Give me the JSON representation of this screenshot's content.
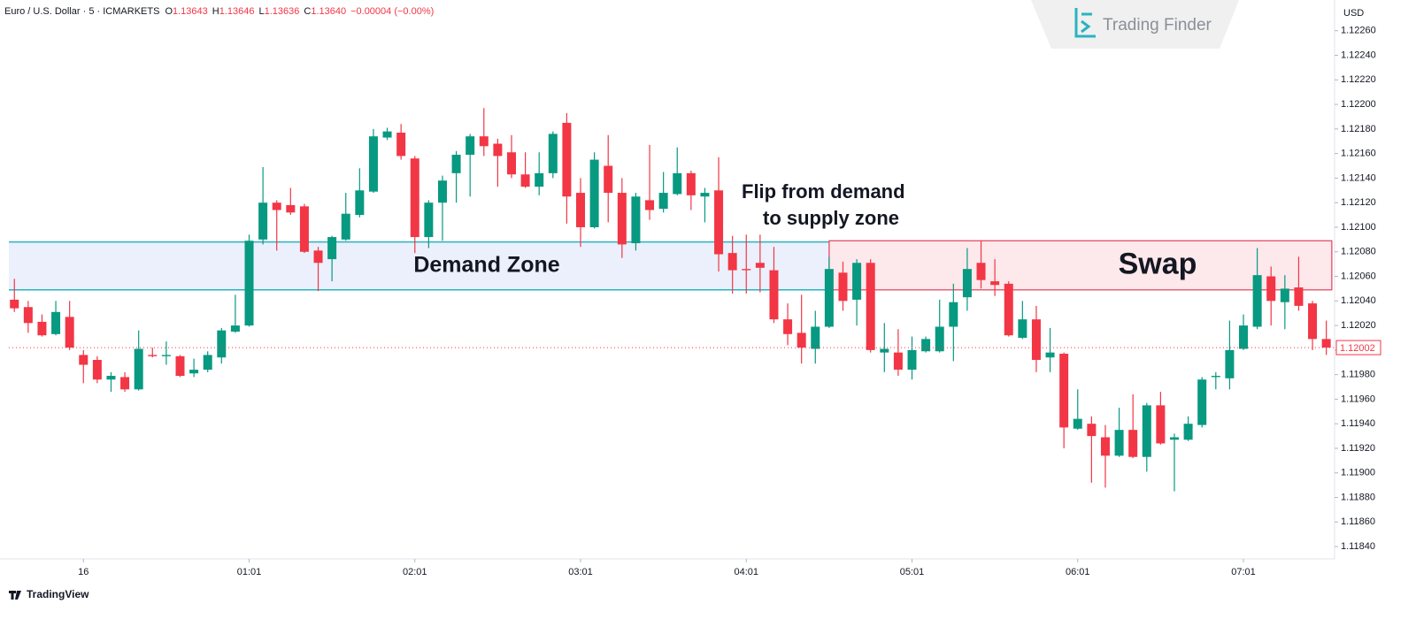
{
  "chart_data": {
    "type": "candlestick",
    "header": {
      "symbol": "Euro / U.S. Dollar · 5 · ICMARKETS",
      "ohlc": [
        {
          "label": "O",
          "value": "1.13643"
        },
        {
          "label": "H",
          "value": "1.13646"
        },
        {
          "label": "L",
          "value": "1.13636"
        },
        {
          "label": "C",
          "value": "1.13640"
        }
      ],
      "change": "−0.00004 (−0.00%)"
    },
    "currency": "USD",
    "watermark": "Trading Finder",
    "footer": "TradingView",
    "up_color": "#089981",
    "down_color": "#f23645",
    "open": [
      1.12041,
      1.12035,
      1.12023,
      1.12013,
      1.12027,
      1.11996,
      1.11992,
      1.11976,
      1.11978,
      1.11968,
      1.11996,
      1.11995,
      1.11995,
      1.11981,
      1.11984,
      1.11994,
      1.12015,
      1.1202,
      1.1209,
      1.1212,
      1.12118,
      1.12117,
      1.12081,
      1.12074,
      1.1209,
      1.1211,
      1.12129,
      1.12173,
      1.12177,
      1.12156,
      1.12092,
      1.1212,
      1.12144,
      1.12159,
      1.12174,
      1.12168,
      1.12161,
      1.12143,
      1.12133,
      1.12144,
      1.12185,
      1.12128,
      1.121,
      1.1215,
      1.12128,
      1.12087,
      1.12122,
      1.12115,
      1.12127,
      1.12144,
      1.12125,
      1.1213,
      1.12079,
      1.12066,
      1.12071,
      1.12065,
      1.12025,
      1.12014,
      1.12001,
      1.12019,
      1.12063,
      1.12041,
      1.12071,
      1.11998,
      1.11998,
      1.11984,
      1.11999,
      1.11999,
      1.12019,
      1.12043,
      1.12071,
      1.12056,
      1.12054,
      1.1201,
      1.12025,
      1.11994,
      1.11997,
      1.11936,
      1.1194,
      1.11929,
      1.11914,
      1.11935,
      1.11913,
      1.11955,
      1.11927,
      1.11927,
      1.11939,
      1.11978,
      1.11977,
      1.12001,
      1.12019,
      1.1206,
      1.12039,
      1.12051,
      1.12038,
      1.12009
    ],
    "high": [
      1.12058,
      1.1204,
      1.12029,
      1.1204,
      1.1204,
      1.12,
      1.11995,
      1.11982,
      1.11982,
      1.12016,
      1.12002,
      1.12007,
      1.11996,
      1.11993,
      1.11999,
      1.12018,
      1.12045,
      1.12094,
      1.12149,
      1.12122,
      1.12132,
      1.12119,
      1.12084,
      1.12093,
      1.12128,
      1.12148,
      1.1218,
      1.12181,
      1.12184,
      1.12158,
      1.12122,
      1.12142,
      1.12162,
      1.12176,
      1.12197,
      1.12172,
      1.12175,
      1.12161,
      1.12161,
      1.12178,
      1.12193,
      1.1214,
      1.12161,
      1.12175,
      1.1214,
      1.12128,
      1.12167,
      1.12145,
      1.12165,
      1.12146,
      1.12132,
      1.12157,
      1.12093,
      1.12094,
      1.12094,
      1.12084,
      1.12038,
      1.12045,
      1.12032,
      1.12076,
      1.12072,
      1.12074,
      1.12074,
      1.12022,
      1.12017,
      1.12011,
      1.12011,
      1.12041,
      1.12054,
      1.12083,
      1.12089,
      1.12074,
      1.12056,
      1.1204,
      1.12036,
      1.12018,
      1.11998,
      1.11968,
      1.11946,
      1.11939,
      1.11953,
      1.11964,
      1.11957,
      1.11966,
      1.11932,
      1.11946,
      1.11978,
      1.11982,
      1.12024,
      1.12029,
      1.12083,
      1.12068,
      1.12061,
      1.12076,
      1.1204,
      1.12024
    ],
    "low": [
      1.12031,
      1.12014,
      1.12011,
      1.12012,
      1.12,
      1.11973,
      1.11973,
      1.11966,
      1.11966,
      1.11967,
      1.11994,
      1.11988,
      1.11978,
      1.11978,
      1.11982,
      1.11989,
      1.12014,
      1.12019,
      1.12086,
      1.12081,
      1.1211,
      1.12079,
      1.12048,
      1.12056,
      1.12089,
      1.12108,
      1.12128,
      1.12171,
      1.12155,
      1.12079,
      1.12083,
      1.12089,
      1.1212,
      1.12125,
      1.12158,
      1.12133,
      1.1214,
      1.12132,
      1.12126,
      1.1214,
      1.12103,
      1.12084,
      1.12099,
      1.12104,
      1.12075,
      1.12081,
      1.12106,
      1.12112,
      1.12126,
      1.12114,
      1.12104,
      1.12064,
      1.12046,
      1.12046,
      1.12047,
      1.12022,
      1.12004,
      1.11989,
      1.11989,
      1.12018,
      1.12032,
      1.1202,
      1.11998,
      1.11982,
      1.11979,
      1.11976,
      1.11998,
      1.11998,
      1.11991,
      1.12032,
      1.1205,
      1.12044,
      1.12011,
      1.12009,
      1.11982,
      1.11982,
      1.1192,
      1.11935,
      1.11892,
      1.11888,
      1.11913,
      1.11912,
      1.11901,
      1.11923,
      1.11885,
      1.11926,
      1.11937,
      1.11968,
      1.11968,
      1.12,
      1.12017,
      1.1202,
      1.12017,
      1.12032,
      1.12,
      1.11996
    ],
    "close": [
      1.12034,
      1.12022,
      1.12012,
      1.12031,
      1.12002,
      1.11988,
      1.11976,
      1.11979,
      1.11968,
      1.12001,
      1.11995,
      1.11996,
      1.11979,
      1.11984,
      1.11996,
      1.12016,
      1.1202,
      1.12089,
      1.1212,
      1.12114,
      1.12112,
      1.1208,
      1.12071,
      1.12092,
      1.12111,
      1.1213,
      1.12174,
      1.12178,
      1.12158,
      1.12092,
      1.1212,
      1.12138,
      1.12159,
      1.12174,
      1.12166,
      1.12158,
      1.12143,
      1.12133,
      1.12144,
      1.12176,
      1.12125,
      1.121,
      1.12155,
      1.12128,
      1.12086,
      1.12125,
      1.12114,
      1.12128,
      1.12144,
      1.12126,
      1.12128,
      1.12078,
      1.12065,
      1.12065,
      1.12067,
      1.12025,
      1.12013,
      1.12002,
      1.12019,
      1.12066,
      1.1204,
      1.12071,
      1.12,
      1.12001,
      1.11984,
      1.12,
      1.12009,
      1.12019,
      1.12039,
      1.12066,
      1.12057,
      1.12053,
      1.12012,
      1.12025,
      1.11992,
      1.11998,
      1.11937,
      1.11944,
      1.1193,
      1.11914,
      1.11935,
      1.11913,
      1.11955,
      1.11924,
      1.11929,
      1.1194,
      1.11976,
      1.11979,
      1.12,
      1.1202,
      1.12061,
      1.1204,
      1.1205,
      1.12036,
      1.12009,
      1.12002
    ],
    "last_price": {
      "value": 1.12002,
      "label": "1.12002"
    },
    "xlim": [
      -0.4,
      95.6
    ],
    "xticks": [
      {
        "value": 5,
        "label": "16"
      },
      {
        "value": 17,
        "label": "01:01"
      },
      {
        "value": 29,
        "label": "02:01"
      },
      {
        "value": 41,
        "label": "03:01"
      },
      {
        "value": 53,
        "label": "04:01"
      },
      {
        "value": 65,
        "label": "05:01"
      },
      {
        "value": 77,
        "label": "06:01"
      },
      {
        "value": 89,
        "label": "07:01"
      }
    ],
    "ylim": [
      1.1183,
      1.12285
    ],
    "yticks": [
      {
        "value": 1.1226,
        "label": "1.12260"
      },
      {
        "value": 1.1224,
        "label": "1.12240"
      },
      {
        "value": 1.1222,
        "label": "1.12220"
      },
      {
        "value": 1.122,
        "label": "1.12200"
      },
      {
        "value": 1.1218,
        "label": "1.12180"
      },
      {
        "value": 1.1216,
        "label": "1.12160"
      },
      {
        "value": 1.1214,
        "label": "1.12140"
      },
      {
        "value": 1.1212,
        "label": "1.12120"
      },
      {
        "value": 1.121,
        "label": "1.12100"
      },
      {
        "value": 1.1208,
        "label": "1.12080"
      },
      {
        "value": 1.1206,
        "label": "1.12060"
      },
      {
        "value": 1.1204,
        "label": "1.12040"
      },
      {
        "value": 1.1202,
        "label": "1.12020"
      },
      {
        "value": 1.12,
        "label": "1.12000"
      },
      {
        "value": 1.1198,
        "label": "1.11980"
      },
      {
        "value": 1.1196,
        "label": "1.11960"
      },
      {
        "value": 1.1194,
        "label": "1.11940"
      },
      {
        "value": 1.1192,
        "label": "1.11920"
      },
      {
        "value": 1.119,
        "label": "1.11900"
      },
      {
        "value": 1.1188,
        "label": "1.11880"
      },
      {
        "value": 1.1186,
        "label": "1.11860"
      },
      {
        "value": 1.1184,
        "label": "1.11840"
      }
    ],
    "zones": [
      {
        "label": "Demand Zone",
        "top": 1.12088,
        "bottom": 1.12049,
        "from": -0.4,
        "to": 59,
        "fill": "#ebf0fc",
        "line": "#2ab3bf"
      },
      {
        "label": "Swap",
        "top": 1.12089,
        "bottom": 1.12049,
        "from": 59,
        "to": 95.4,
        "fill": "#fde8eb",
        "line": "#e0405a"
      }
    ],
    "annotations": [
      "Flip from demand",
      "to supply zone"
    ]
  }
}
